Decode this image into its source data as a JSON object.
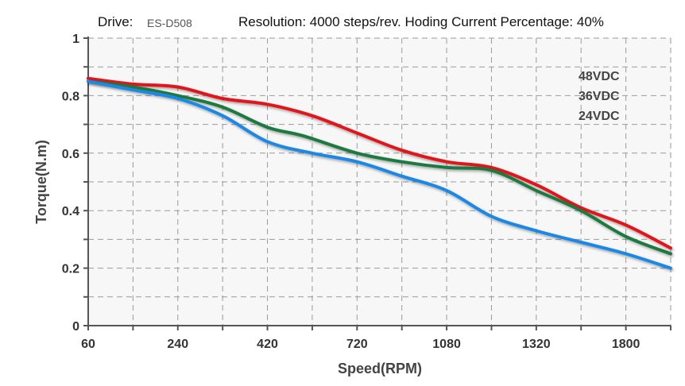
{
  "header": {
    "drive_label": "Drive:",
    "drive_value": "ES-D508",
    "resolution_text": "Resolution: 4000 steps/rev.  Hoding Current Percentage: 40%"
  },
  "chart_data": {
    "type": "line",
    "title": "",
    "xlabel": "Speed(RPM)",
    "ylabel": "Torque(N.m)",
    "categories": [
      "60",
      "240",
      "420",
      "720",
      "1080",
      "1320",
      "1800"
    ],
    "x_positions": [
      0,
      1,
      2,
      3,
      4,
      5,
      6,
      6.5
    ],
    "y_ticks": [
      "0",
      "0.2",
      "0.4",
      "0.6",
      "0.8",
      "1"
    ],
    "ylim": [
      0,
      1
    ],
    "grid": true,
    "legend_position": "top-right",
    "series": [
      {
        "name": "48VDC",
        "color": "#e0191b",
        "points": [
          [
            0,
            0.86
          ],
          [
            0.5,
            0.84
          ],
          [
            1,
            0.83
          ],
          [
            1.5,
            0.79
          ],
          [
            2,
            0.77
          ],
          [
            2.5,
            0.73
          ],
          [
            3,
            0.67
          ],
          [
            3.5,
            0.61
          ],
          [
            4,
            0.57
          ],
          [
            4.5,
            0.55
          ],
          [
            5,
            0.49
          ],
          [
            5.5,
            0.41
          ],
          [
            6,
            0.35
          ],
          [
            6.5,
            0.27
          ]
        ]
      },
      {
        "name": "36VDC",
        "color": "#1f7a3f",
        "points": [
          [
            0,
            0.85
          ],
          [
            0.5,
            0.83
          ],
          [
            1,
            0.8
          ],
          [
            1.5,
            0.76
          ],
          [
            2,
            0.69
          ],
          [
            2.4,
            0.66
          ],
          [
            3,
            0.6
          ],
          [
            3.5,
            0.57
          ],
          [
            4,
            0.55
          ],
          [
            4.5,
            0.54
          ],
          [
            5,
            0.47
          ],
          [
            5.5,
            0.4
          ],
          [
            6,
            0.31
          ],
          [
            6.5,
            0.25
          ]
        ]
      },
      {
        "name": "24VDC",
        "color": "#1e88e5",
        "points": [
          [
            0,
            0.85
          ],
          [
            0.5,
            0.82
          ],
          [
            1,
            0.79
          ],
          [
            1.5,
            0.73
          ],
          [
            2,
            0.64
          ],
          [
            2.5,
            0.6
          ],
          [
            3,
            0.57
          ],
          [
            3.5,
            0.52
          ],
          [
            4,
            0.47
          ],
          [
            4.5,
            0.38
          ],
          [
            5,
            0.33
          ],
          [
            5.5,
            0.29
          ],
          [
            6,
            0.25
          ],
          [
            6.5,
            0.2
          ]
        ]
      }
    ]
  }
}
